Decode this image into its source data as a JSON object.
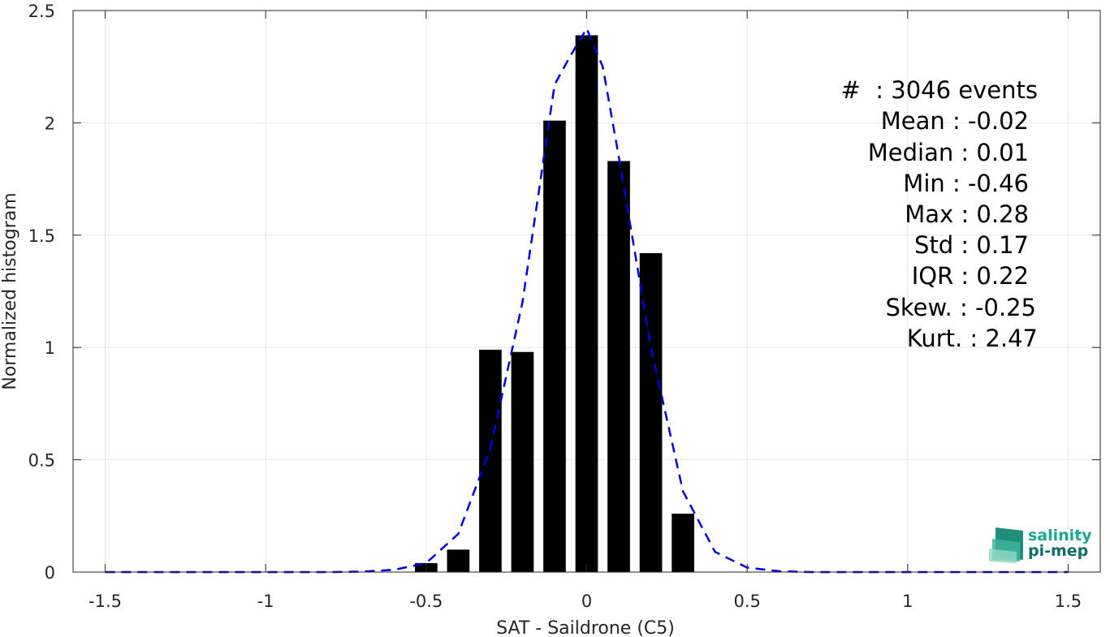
{
  "chart_data": {
    "type": "bar",
    "xlabel": "SAT - Saildrone (C5)",
    "ylabel": "Normalized histogram",
    "xlim": [
      -1.6,
      1.6
    ],
    "ylim": [
      0,
      2.5
    ],
    "grid": true,
    "xticks": [
      -1.5,
      -1,
      -0.5,
      0,
      0.5,
      1,
      1.5
    ],
    "xtick_labels": [
      "-1.5",
      "-1",
      "-0.5",
      "0",
      "0.5",
      "1",
      "1.5"
    ],
    "yticks": [
      0,
      0.5,
      1,
      1.5,
      2,
      2.5
    ],
    "ytick_labels": [
      "0",
      "0.5",
      "1",
      "1.5",
      "2",
      "2.5"
    ],
    "bar_width": 0.07,
    "bars": {
      "x": [
        -0.5,
        -0.4,
        -0.3,
        -0.2,
        -0.1,
        0.0,
        0.1,
        0.2,
        0.3
      ],
      "values": [
        0.04,
        0.1,
        0.99,
        0.98,
        2.01,
        2.39,
        1.83,
        1.42,
        0.26
      ],
      "color": "#000000"
    },
    "fit_curve": {
      "style": "dashed",
      "color": "#0000dd",
      "x": [
        -1.5,
        -1.4,
        -1.3,
        -1.2,
        -1.1,
        -1.0,
        -0.9,
        -0.8,
        -0.7,
        -0.6,
        -0.5,
        -0.4,
        -0.3,
        -0.2,
        -0.1,
        -0.05,
        0.0,
        0.05,
        0.1,
        0.2,
        0.3,
        0.4,
        0.5,
        0.6,
        0.7,
        0.8,
        0.9,
        1.0,
        1.1,
        1.2,
        1.3,
        1.4,
        1.5
      ],
      "y": [
        0,
        0,
        0,
        0,
        0,
        0,
        0,
        0,
        0.002,
        0.01,
        0.04,
        0.17,
        0.55,
        1.2,
        2.17,
        2.3,
        2.42,
        2.25,
        1.85,
        1.0,
        0.36,
        0.09,
        0.02,
        0.004,
        0,
        0,
        0,
        0,
        0,
        0,
        0,
        0,
        0
      ]
    },
    "stats": {
      "count": "#  : 3046 events",
      "mean": "Mean : -0.02",
      "median": "Median : 0.01",
      "min": "Min : -0.46",
      "max": "Max : 0.28",
      "std": "Std : 0.17",
      "iqr": "IQR : 0.22",
      "skew": "Skew. : -0.25",
      "kurt": "Kurt. : 2.47"
    }
  },
  "logo": {
    "line1": "salinity",
    "line2": "pi-mep",
    "color1": "#1aa88e",
    "color2": "#0f6f63"
  }
}
